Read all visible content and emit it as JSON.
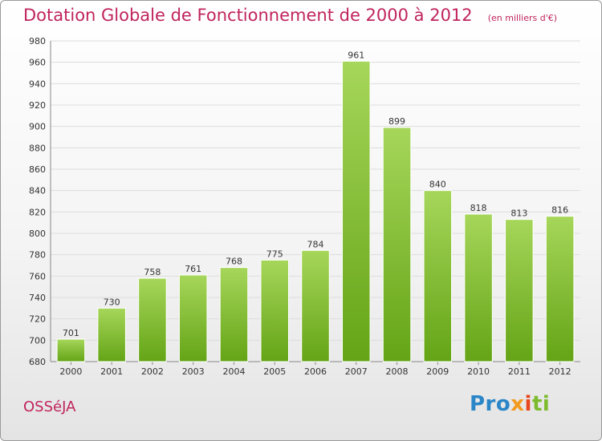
{
  "header": {
    "title": "Dotation Globale de Fonctionnement de 2000 à 2012",
    "unit": "(en milliers d'€)"
  },
  "footer": {
    "commune": "OSSéJA",
    "logo": {
      "p1": "Pro",
      "p2": "x",
      "p3": "i",
      "p4": "ti"
    }
  },
  "colors": {
    "title": "#c0245c",
    "bar_light": "#a6d65a",
    "bar_dark": "#64a416",
    "grid": "#dddddd"
  },
  "chart_data": {
    "type": "bar",
    "title": "Dotation Globale de Fonctionnement de 2000 à 2012",
    "ylabel": "(en milliers d'€)",
    "categories": [
      "2000",
      "2001",
      "2002",
      "2003",
      "2004",
      "2005",
      "2006",
      "2007",
      "2008",
      "2009",
      "2010",
      "2011",
      "2012"
    ],
    "values": [
      701,
      730,
      758,
      761,
      768,
      775,
      784,
      961,
      899,
      840,
      818,
      813,
      816
    ],
    "ylim": [
      680,
      980
    ],
    "yticks": [
      680,
      700,
      720,
      740,
      760,
      780,
      800,
      820,
      840,
      860,
      880,
      900,
      920,
      940,
      960,
      980
    ],
    "grid": true,
    "legend": "none"
  }
}
